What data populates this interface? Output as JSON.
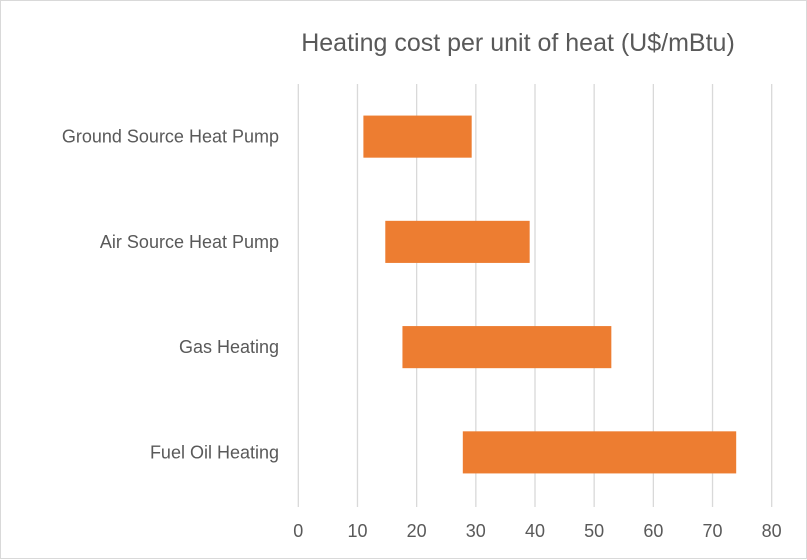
{
  "chart_data": {
    "type": "bar",
    "orientation": "horizontal",
    "style": "floating-range",
    "title": "Heating cost per unit of heat (U$/mBtu)",
    "categories": [
      "Ground Source Heat Pump",
      "Air Source Heat Pump",
      "Gas Heating",
      "Fuel Oil Heating"
    ],
    "ranges": [
      [
        11.0,
        29.3
      ],
      [
        14.7,
        39.1
      ],
      [
        17.6,
        52.9
      ],
      [
        27.8,
        74.0
      ]
    ],
    "xlim": [
      0,
      80
    ],
    "xticks": [
      "0",
      "10",
      "20",
      "30",
      "40",
      "50",
      "60",
      "70",
      "80"
    ],
    "grid": true,
    "legend": "none",
    "colors": {
      "bar": "#ED7D31",
      "grid": "#D9D9D9",
      "text": "#595959"
    }
  }
}
